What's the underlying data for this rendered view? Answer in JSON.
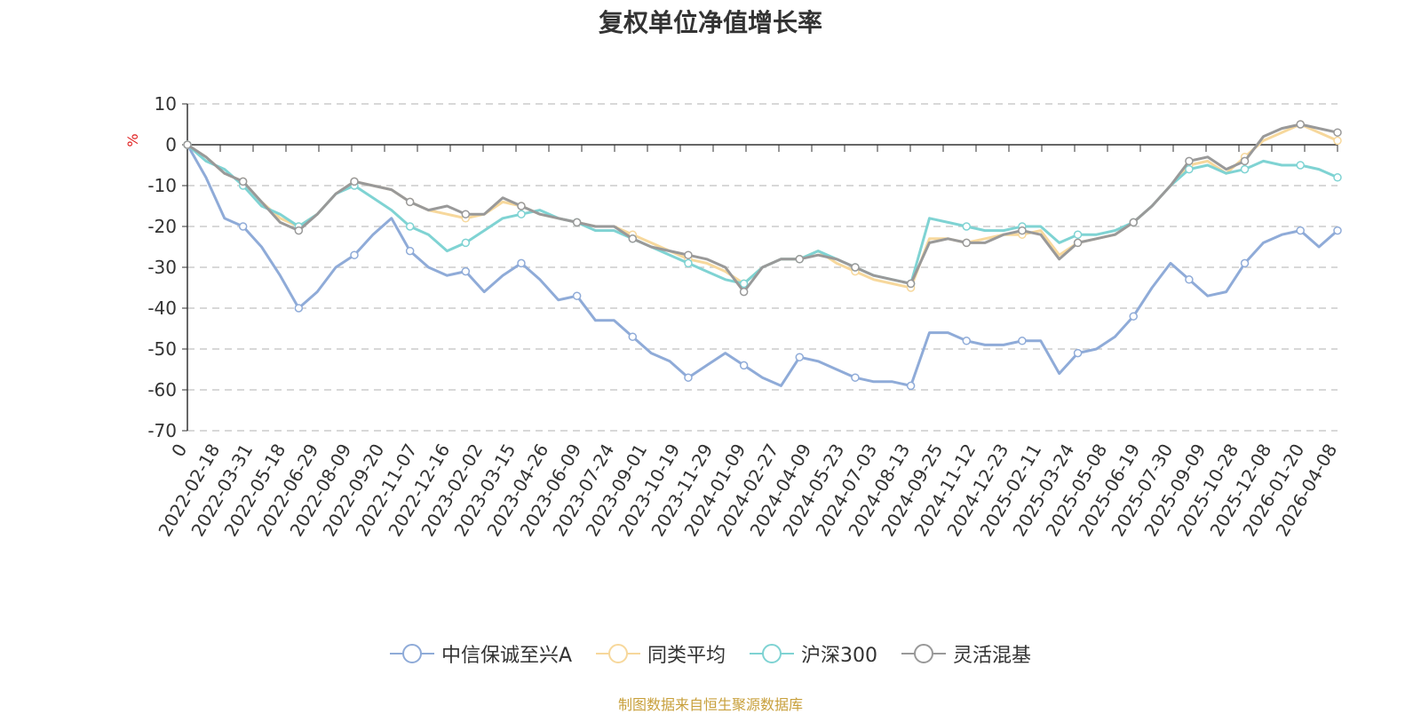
{
  "chart_data": {
    "type": "line",
    "title": "复权单位净值增长率",
    "ylabel": "%",
    "ylim": [
      -70,
      10
    ],
    "yticks": [
      10,
      0,
      -10,
      -20,
      -30,
      -40,
      -50,
      -60,
      -70
    ],
    "grid": true,
    "legend_position": "bottom",
    "xticks": [
      "0",
      "2022-02-18",
      "2022-03-31",
      "2022-05-18",
      "2022-06-29",
      "2022-08-09",
      "2022-09-20",
      "2022-11-07",
      "2022-12-16",
      "2023-02-02",
      "2023-03-15",
      "2023-04-26",
      "2023-06-09",
      "2023-07-24",
      "2023-09-01",
      "2023-10-19",
      "2023-11-29",
      "2024-01-09",
      "2024-02-27",
      "2024-04-09",
      "2024-05-23",
      "2024-07-03",
      "2024-08-13",
      "2024-09-25",
      "2024-11-12",
      "2024-12-23",
      "2025-02-11",
      "2025-03-24",
      "2025-05-08",
      "2025-06-19",
      "2025-07-30",
      "2025-09-09",
      "2025-10-28",
      "2025-12-08",
      "2026-01-20",
      "2026-04-08"
    ],
    "series": [
      {
        "name": "中信保诚至兴A",
        "color": "#8fabd8",
        "values": [
          0,
          -8,
          -18,
          -20,
          -25,
          -32,
          -40,
          -36,
          -30,
          -27,
          -22,
          -18,
          -26,
          -30,
          -32,
          -31,
          -36,
          -32,
          -29,
          -33,
          -38,
          -37,
          -43,
          -43,
          -47,
          -51,
          -53,
          -57,
          -54,
          -51,
          -54,
          -57,
          -59,
          -52,
          -53,
          -55,
          -57,
          -58,
          -58,
          -59,
          -46,
          -46,
          -48,
          -49,
          -49,
          -48,
          -48,
          -56,
          -51,
          -50,
          -47,
          -42,
          -35,
          -29,
          -33,
          -37,
          -36,
          -29,
          -24,
          -22,
          -21,
          -25,
          -21
        ]
      },
      {
        "name": "同类平均",
        "color": "#f7d89c",
        "values": [
          0,
          -3,
          -7,
          -9,
          -14,
          -18,
          -20,
          -17,
          -12,
          -9,
          -10,
          -11,
          -14,
          -16,
          -17,
          -18,
          -17,
          -14,
          -15,
          -17,
          -18,
          -19,
          -20,
          -20,
          -22,
          -24,
          -26,
          -28,
          -29,
          -31,
          -34,
          -30,
          -28,
          -28,
          -26,
          -29,
          -31,
          -33,
          -34,
          -35,
          -23,
          -23,
          -24,
          -23,
          -22,
          -22,
          -21,
          -27,
          -24,
          -23,
          -22,
          -19,
          -15,
          -10,
          -5,
          -4,
          -7,
          -3,
          1,
          3,
          5,
          3,
          1
        ]
      },
      {
        "name": "沪深300",
        "color": "#7fd3d3",
        "values": [
          0,
          -4,
          -6,
          -10,
          -15,
          -17,
          -20,
          -17,
          -12,
          -10,
          -13,
          -16,
          -20,
          -22,
          -26,
          -24,
          -21,
          -18,
          -17,
          -16,
          -18,
          -19,
          -21,
          -21,
          -23,
          -25,
          -27,
          -29,
          -31,
          -33,
          -34,
          -30,
          -28,
          -28,
          -26,
          -28,
          -30,
          -32,
          -33,
          -34,
          -18,
          -19,
          -20,
          -21,
          -21,
          -20,
          -20,
          -24,
          -22,
          -22,
          -21,
          -19,
          -15,
          -10,
          -6,
          -5,
          -7,
          -6,
          -4,
          -5,
          -5,
          -6,
          -8
        ]
      },
      {
        "name": "灵活混基",
        "color": "#999999",
        "values": [
          0,
          -3,
          -7,
          -9,
          -14,
          -19,
          -21,
          -17,
          -12,
          -9,
          -10,
          -11,
          -14,
          -16,
          -15,
          -17,
          -17,
          -13,
          -15,
          -17,
          -18,
          -19,
          -20,
          -20,
          -23,
          -25,
          -26,
          -27,
          -28,
          -30,
          -36,
          -30,
          -28,
          -28,
          -27,
          -28,
          -30,
          -32,
          -33,
          -34,
          -24,
          -23,
          -24,
          -24,
          -22,
          -21,
          -22,
          -28,
          -24,
          -23,
          -22,
          -19,
          -15,
          -10,
          -4,
          -3,
          -6,
          -4,
          2,
          4,
          5,
          4,
          3
        ]
      }
    ]
  },
  "legend": {
    "items": [
      "中信保诚至兴A",
      "同类平均",
      "沪深300",
      "灵活混基"
    ]
  },
  "footer": {
    "source": "制图数据来自恒生聚源数据库"
  }
}
